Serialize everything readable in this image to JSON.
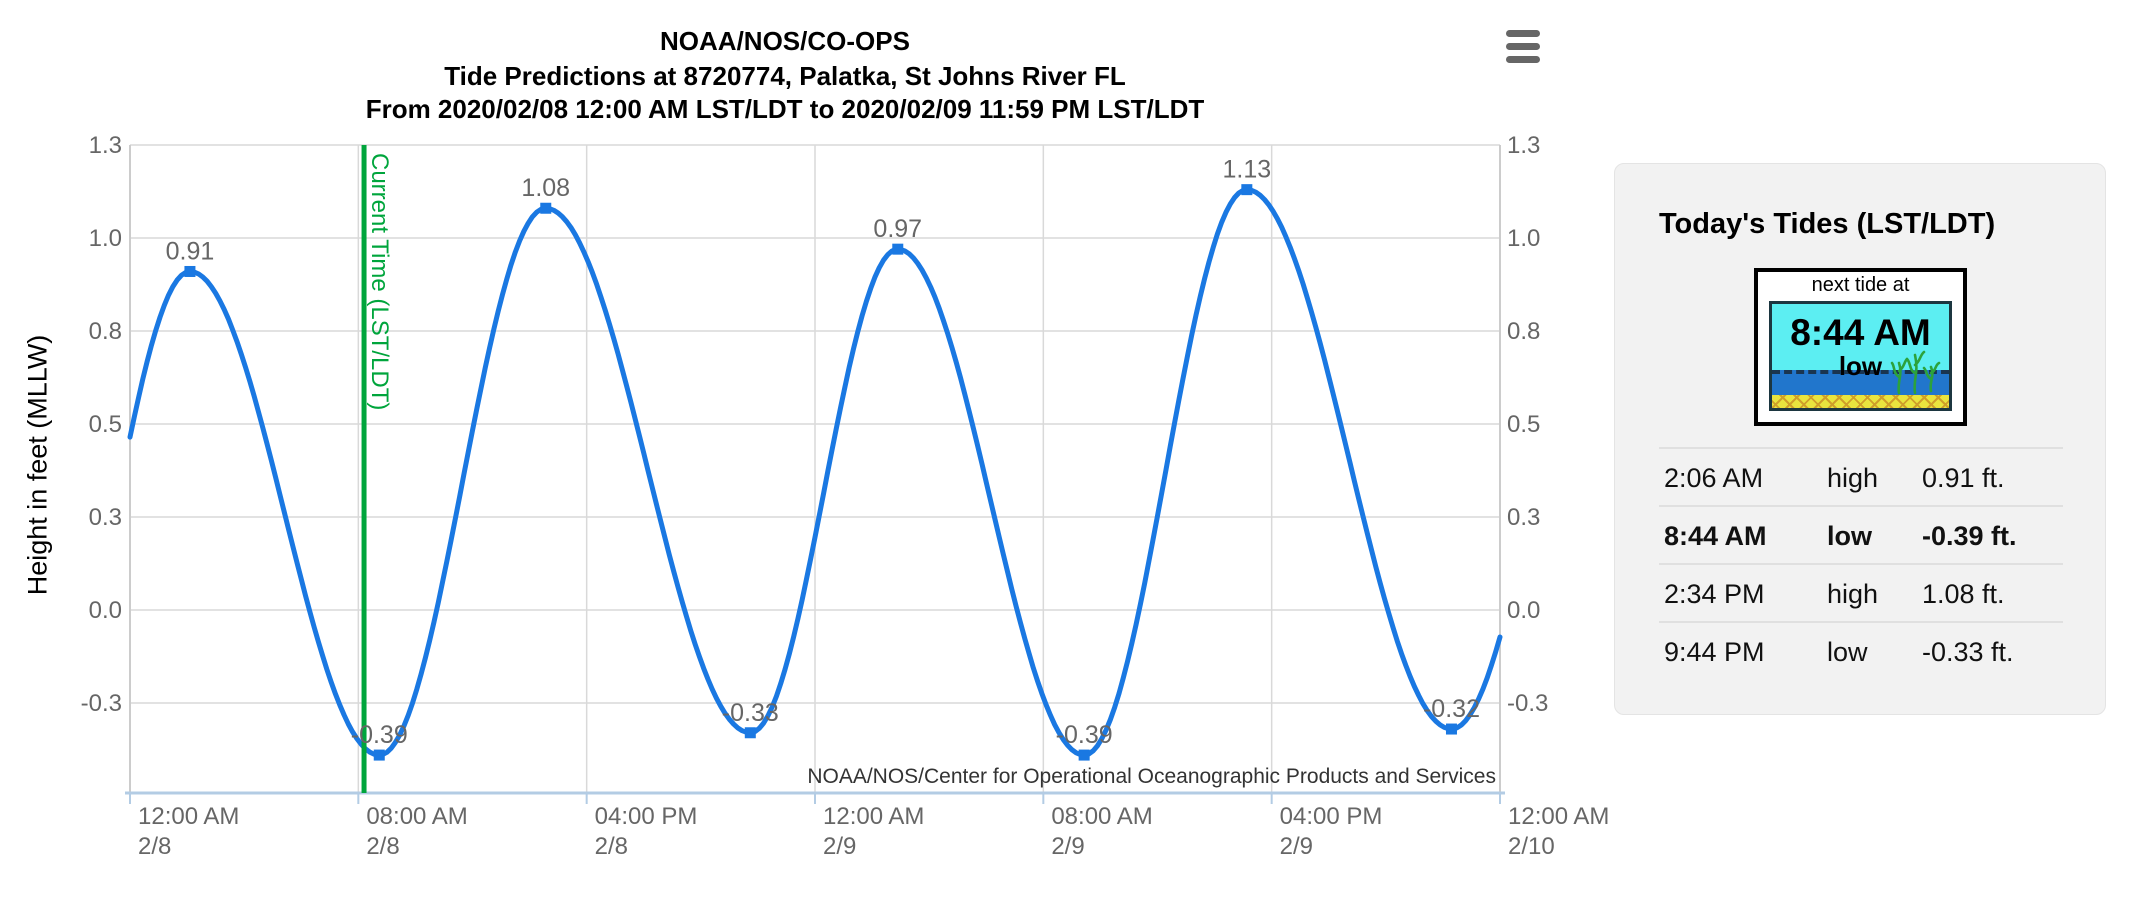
{
  "chart": {
    "title": "NOAA/NOS/CO-OPS",
    "subtitle_location": "Tide Predictions at 8720774, Palatka, St Johns River FL",
    "subtitle_range": "From 2020/02/08 12:00 AM LST/LDT to 2020/02/09 11:59 PM LST/LDT",
    "ylabel": "Height in feet (MLLW)"
  },
  "icons": {
    "menu": "hamburger-icon"
  },
  "chart_data": {
    "type": "line",
    "title": "NOAA/NOS/CO-OPS",
    "subtitle1": "Tide Predictions at 8720774, Palatka, St Johns River FL",
    "subtitle2": "From 2020/02/08 12:00 AM LST/LDT to 2020/02/09 11:59 PM LST/LDT",
    "ylabel": "Height in feet (MLLW)",
    "watermark": "NOAA/NOS/Center for Operational Oceanographic Products and Services",
    "grid": true,
    "legend": "none",
    "x_hours_range": [
      0,
      48
    ],
    "y_value_range": [
      -0.49,
      1.25
    ],
    "x_ticks": [
      {
        "hours": 0,
        "time": "12:00 AM",
        "date": "2/8"
      },
      {
        "hours": 8,
        "time": "08:00 AM",
        "date": "2/8"
      },
      {
        "hours": 16,
        "time": "04:00 PM",
        "date": "2/8"
      },
      {
        "hours": 24,
        "time": "12:00 AM",
        "date": "2/9"
      },
      {
        "hours": 32,
        "time": "08:00 AM",
        "date": "2/9"
      },
      {
        "hours": 40,
        "time": "04:00 PM",
        "date": "2/9"
      },
      {
        "hours": 48,
        "time": "12:00 AM",
        "date": "2/10"
      }
    ],
    "y_ticks": [
      {
        "value": 1.25,
        "label": "1.3"
      },
      {
        "value": 1.0,
        "label": "1.0"
      },
      {
        "value": 0.75,
        "label": "0.8"
      },
      {
        "value": 0.5,
        "label": "0.5"
      },
      {
        "value": 0.25,
        "label": "0.3"
      },
      {
        "value": 0.0,
        "label": "0.0"
      },
      {
        "value": -0.25,
        "label": "-0.3"
      }
    ],
    "extremes": [
      {
        "hours": 2.1,
        "value": 0.91,
        "label": "0.91",
        "type": "high"
      },
      {
        "hours": 8.733,
        "value": -0.39,
        "label": "-0.39",
        "type": "low"
      },
      {
        "hours": 14.567,
        "value": 1.08,
        "label": "1.08",
        "type": "high"
      },
      {
        "hours": 21.733,
        "value": -0.33,
        "label": "-0.33",
        "type": "low"
      },
      {
        "hours": 26.9,
        "value": 0.97,
        "label": "0.97",
        "type": "high"
      },
      {
        "hours": 33.43,
        "value": -0.39,
        "label": "-0.39",
        "type": "low"
      },
      {
        "hours": 39.13,
        "value": 1.13,
        "label": "1.13",
        "type": "high"
      },
      {
        "hours": 46.3,
        "value": -0.32,
        "label": "-0.32",
        "type": "low"
      }
    ],
    "current_time": {
      "hours": 8.2,
      "label": "Current Time (LST/LDT)"
    },
    "colors": {
      "series": "#1a78e2",
      "current_time": "#00a53c",
      "gridline": "#d9d9d9",
      "plot_border": "#cccccc",
      "x_axis_line": "#b3cce4",
      "tick_label": "#666666",
      "data_label": "#666666",
      "watermark": "#333333"
    }
  },
  "panel": {
    "title": "Today's Tides (LST/LDT)",
    "graphic": {
      "caption": "next tide at",
      "time": "8:44 AM",
      "type": "low"
    },
    "rows": [
      {
        "time": "2:06 AM",
        "type": "high",
        "height": "0.91 ft.",
        "emphasis": false
      },
      {
        "time": "8:44 AM",
        "type": "low",
        "height": "-0.39 ft.",
        "emphasis": true
      },
      {
        "time": "2:34 PM",
        "type": "high",
        "height": "1.08 ft.",
        "emphasis": false
      },
      {
        "time": "9:44 PM",
        "type": "low",
        "height": "-0.33 ft.",
        "emphasis": false
      }
    ]
  }
}
